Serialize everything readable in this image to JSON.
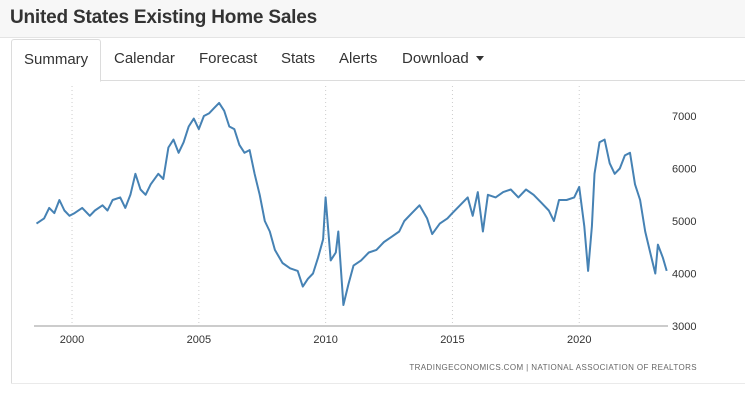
{
  "page": {
    "title": "United States Existing Home Sales",
    "source": "TRADINGECONOMICS.COM  |  NATIONAL ASSOCIATION OF REALTORS"
  },
  "tabs": [
    {
      "label": "Summary",
      "active": true
    },
    {
      "label": "Calendar",
      "active": false
    },
    {
      "label": "Forecast",
      "active": false
    },
    {
      "label": "Stats",
      "active": false
    },
    {
      "label": "Alerts",
      "active": false
    },
    {
      "label": "Download",
      "active": false,
      "dropdown": true
    }
  ],
  "colors": {
    "line": "#4682b4",
    "grid": "#cccccc"
  },
  "chart_data": {
    "type": "line",
    "title": "",
    "xlabel": "",
    "ylabel": "",
    "xlim": [
      1998.5,
      2023.5
    ],
    "ylim": [
      3000,
      7500
    ],
    "x_ticks": [
      2000,
      2005,
      2010,
      2015,
      2020
    ],
    "y_ticks": [
      3000,
      4000,
      5000,
      6000,
      7000
    ],
    "y_axis_position": "right",
    "grid": "dotted vertical lines at x ticks",
    "series": [
      {
        "values": [
          [
            1998.6,
            4950
          ],
          [
            1998.9,
            5050
          ],
          [
            1999.1,
            5250
          ],
          [
            1999.3,
            5150
          ],
          [
            1999.5,
            5400
          ],
          [
            1999.7,
            5200
          ],
          [
            1999.9,
            5100
          ],
          [
            2000.1,
            5150
          ],
          [
            2000.4,
            5250
          ],
          [
            2000.7,
            5100
          ],
          [
            2000.9,
            5200
          ],
          [
            2001.2,
            5300
          ],
          [
            2001.4,
            5200
          ],
          [
            2001.6,
            5400
          ],
          [
            2001.9,
            5450
          ],
          [
            2002.1,
            5250
          ],
          [
            2002.3,
            5500
          ],
          [
            2002.5,
            5900
          ],
          [
            2002.7,
            5600
          ],
          [
            2002.9,
            5500
          ],
          [
            2003.1,
            5700
          ],
          [
            2003.4,
            5900
          ],
          [
            2003.6,
            5800
          ],
          [
            2003.8,
            6400
          ],
          [
            2004.0,
            6550
          ],
          [
            2004.2,
            6300
          ],
          [
            2004.4,
            6500
          ],
          [
            2004.6,
            6800
          ],
          [
            2004.8,
            6950
          ],
          [
            2005.0,
            6750
          ],
          [
            2005.2,
            7000
          ],
          [
            2005.4,
            7050
          ],
          [
            2005.6,
            7150
          ],
          [
            2005.8,
            7250
          ],
          [
            2006.0,
            7100
          ],
          [
            2006.2,
            6800
          ],
          [
            2006.4,
            6750
          ],
          [
            2006.6,
            6450
          ],
          [
            2006.8,
            6300
          ],
          [
            2007.0,
            6350
          ],
          [
            2007.2,
            5900
          ],
          [
            2007.4,
            5500
          ],
          [
            2007.6,
            5000
          ],
          [
            2007.8,
            4800
          ],
          [
            2008.0,
            4450
          ],
          [
            2008.3,
            4200
          ],
          [
            2008.6,
            4100
          ],
          [
            2008.9,
            4050
          ],
          [
            2009.1,
            3750
          ],
          [
            2009.3,
            3900
          ],
          [
            2009.5,
            4000
          ],
          [
            2009.7,
            4300
          ],
          [
            2009.9,
            4650
          ],
          [
            2010.0,
            5450
          ],
          [
            2010.2,
            4250
          ],
          [
            2010.4,
            4400
          ],
          [
            2010.5,
            4800
          ],
          [
            2010.7,
            3400
          ],
          [
            2010.9,
            3800
          ],
          [
            2011.1,
            4150
          ],
          [
            2011.4,
            4250
          ],
          [
            2011.7,
            4400
          ],
          [
            2012.0,
            4450
          ],
          [
            2012.3,
            4600
          ],
          [
            2012.6,
            4700
          ],
          [
            2012.9,
            4800
          ],
          [
            2013.1,
            5000
          ],
          [
            2013.4,
            5150
          ],
          [
            2013.7,
            5300
          ],
          [
            2014.0,
            5050
          ],
          [
            2014.2,
            4750
          ],
          [
            2014.5,
            4950
          ],
          [
            2014.8,
            5050
          ],
          [
            2015.0,
            5150
          ],
          [
            2015.3,
            5300
          ],
          [
            2015.6,
            5450
          ],
          [
            2015.8,
            5100
          ],
          [
            2016.0,
            5550
          ],
          [
            2016.2,
            4800
          ],
          [
            2016.4,
            5500
          ],
          [
            2016.7,
            5450
          ],
          [
            2017.0,
            5550
          ],
          [
            2017.3,
            5600
          ],
          [
            2017.6,
            5450
          ],
          [
            2017.9,
            5600
          ],
          [
            2018.2,
            5500
          ],
          [
            2018.5,
            5350
          ],
          [
            2018.8,
            5200
          ],
          [
            2019.0,
            5000
          ],
          [
            2019.2,
            5400
          ],
          [
            2019.5,
            5400
          ],
          [
            2019.8,
            5450
          ],
          [
            2020.0,
            5650
          ],
          [
            2020.2,
            4900
          ],
          [
            2020.35,
            4050
          ],
          [
            2020.5,
            4900
          ],
          [
            2020.6,
            5900
          ],
          [
            2020.8,
            6500
          ],
          [
            2021.0,
            6550
          ],
          [
            2021.2,
            6100
          ],
          [
            2021.4,
            5900
          ],
          [
            2021.6,
            6000
          ],
          [
            2021.8,
            6250
          ],
          [
            2022.0,
            6300
          ],
          [
            2022.2,
            5700
          ],
          [
            2022.4,
            5400
          ],
          [
            2022.6,
            4800
          ],
          [
            2022.8,
            4400
          ],
          [
            2023.0,
            4000
          ],
          [
            2023.1,
            4550
          ],
          [
            2023.3,
            4300
          ],
          [
            2023.45,
            4050
          ]
        ]
      }
    ]
  }
}
